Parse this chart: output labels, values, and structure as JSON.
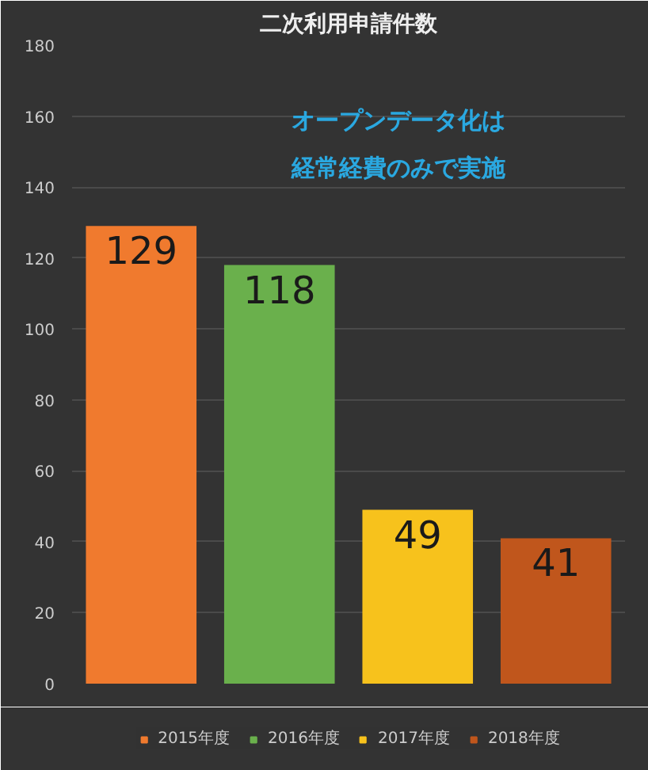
{
  "chart_data": {
    "type": "bar",
    "title": "二次利用申請件数",
    "categories": [
      null,
      null,
      null,
      null
    ],
    "series": [
      {
        "name": "2015年度",
        "color": "#f07a2e",
        "values": [
          129,
          null,
          null,
          null
        ]
      },
      {
        "name": "2016年度",
        "color": "#6ab04c",
        "values": [
          null,
          118,
          null,
          null
        ]
      },
      {
        "name": "2017年度",
        "color": "#f7c21c",
        "values": [
          null,
          null,
          49,
          null
        ]
      },
      {
        "name": "2018年度",
        "color": "#c0561c",
        "values": [
          null,
          null,
          null,
          41
        ]
      }
    ],
    "ylim": [
      0,
      180
    ],
    "yticks": [
      0,
      20,
      40,
      60,
      80,
      100,
      120,
      140,
      160,
      180
    ],
    "grid": "y",
    "legend": "bottom",
    "data_labels": true,
    "tick_labels": "y",
    "annotations": [
      "オープンデータ化は経常経費のみで実施"
    ]
  }
}
